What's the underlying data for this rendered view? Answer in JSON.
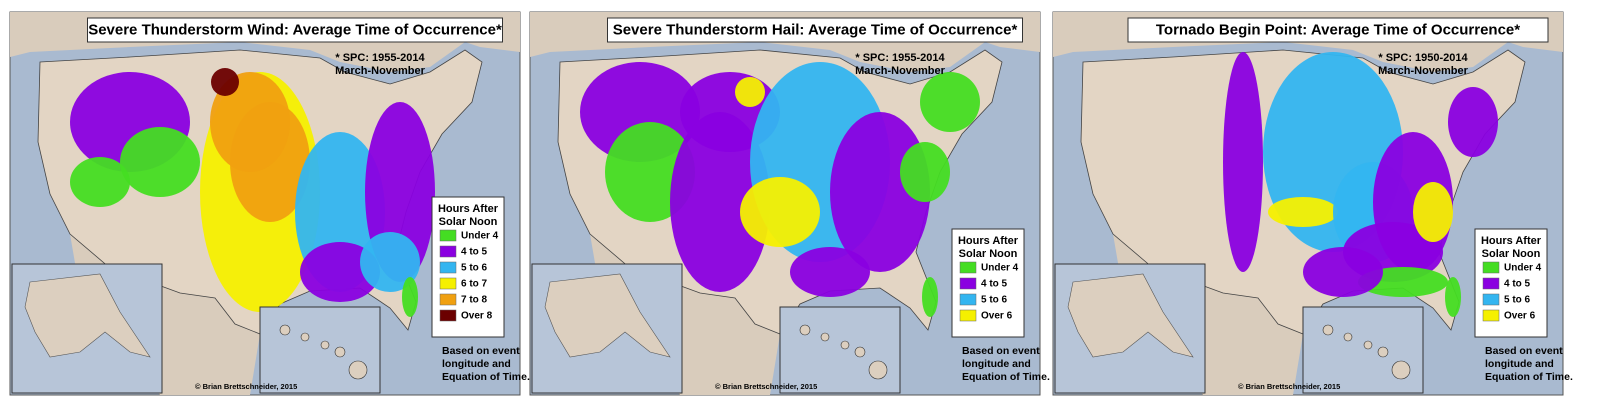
{
  "panels": [
    {
      "title": "Severe Thunderstorm Wind: Average Time of Occurrence*",
      "source": [
        "* SPC: 1955-2014",
        "March-November"
      ],
      "legend": {
        "title": [
          "Hours After",
          "Solar Noon"
        ],
        "items": [
          {
            "label": "Under 4",
            "color": "#44dd22"
          },
          {
            "label": "4 to 5",
            "color": "#8a00e0"
          },
          {
            "label": "5 to 6",
            "color": "#33b5f0"
          },
          {
            "label": "6 to 7",
            "color": "#f5f000"
          },
          {
            "label": "7 to 8",
            "color": "#f0a010"
          },
          {
            "label": "Over 8",
            "color": "#6b0000"
          }
        ]
      },
      "note": [
        "Based on event",
        "longitude and",
        "Equation of Time."
      ],
      "credit": "© Brian Brettschneider, 2015"
    },
    {
      "title": "Severe Thunderstorm Hail: Average Time of Occurrence*",
      "source": [
        "* SPC: 1955-2014",
        "March-November"
      ],
      "legend": {
        "title": [
          "Hours After",
          "Solar Noon"
        ],
        "items": [
          {
            "label": "Under 4",
            "color": "#44dd22"
          },
          {
            "label": "4 to 5",
            "color": "#8a00e0"
          },
          {
            "label": "5 to 6",
            "color": "#33b5f0"
          },
          {
            "label": "Over 6",
            "color": "#f5f000"
          }
        ]
      },
      "note": [
        "Based on event",
        "longitude and",
        "Equation of Time."
      ],
      "credit": "© Brian Brettschneider, 2015"
    },
    {
      "title": "Tornado Begin Point: Average Time of Occurrence*",
      "source": [
        "* SPC: 1950-2014",
        "March-November"
      ],
      "legend": {
        "title": [
          "Hours After",
          "Solar Noon"
        ],
        "items": [
          {
            "label": "Under 4",
            "color": "#44dd22"
          },
          {
            "label": "4 to 5",
            "color": "#8a00e0"
          },
          {
            "label": "5 to 6",
            "color": "#33b5f0"
          },
          {
            "label": "Over 6",
            "color": "#f5f000"
          }
        ]
      },
      "note": [
        "Based on event",
        "longitude and",
        "Equation of Time."
      ],
      "credit": "© Brian Brettschneider, 2015"
    }
  ]
}
